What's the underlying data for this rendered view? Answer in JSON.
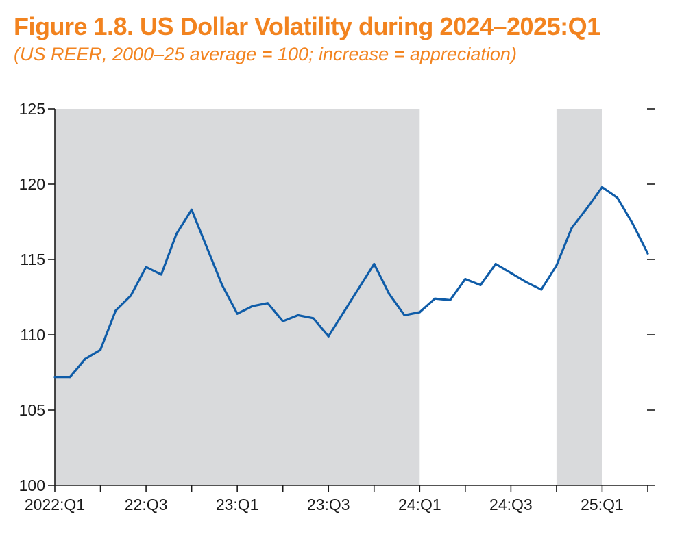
{
  "chart_data": {
    "type": "line",
    "title": "Figure 1.8. US Dollar Volatility during 2024–2025:Q1",
    "subtitle": "(US REER, 2000–25 average = 100; increase = appreciation)",
    "xlabel": "",
    "ylabel": "",
    "x_tick_labels": [
      "2022:Q1",
      "22:Q3",
      "23:Q1",
      "23:Q3",
      "24:Q1",
      "24:Q3",
      "25:Q1"
    ],
    "y_tick_labels": [
      "100",
      "105",
      "110",
      "115",
      "120",
      "125"
    ],
    "ylim": [
      100,
      125
    ],
    "xlim": [
      0,
      39
    ],
    "x_unit": "months since 2022:Q1 (one point per month)",
    "grid": false,
    "line_color": "#0f5ca8",
    "shading_color": "#d9dadc",
    "shaded_periods": [
      [
        0,
        24
      ],
      [
        33,
        36
      ]
    ],
    "series": [
      {
        "values": [
          107.2,
          107.2,
          108.4,
          109.0,
          111.6,
          112.6,
          114.5,
          114.0,
          116.7,
          118.3,
          115.8,
          113.3,
          111.4,
          111.9,
          112.1,
          110.9,
          111.3,
          111.1,
          109.9,
          111.5,
          113.1,
          114.7,
          112.7,
          111.3,
          111.5,
          112.4,
          112.3,
          113.7,
          113.3,
          114.7,
          114.1,
          113.5,
          113.0,
          114.6,
          117.1,
          118.4,
          119.8,
          119.1,
          117.4,
          115.4
        ]
      }
    ]
  }
}
